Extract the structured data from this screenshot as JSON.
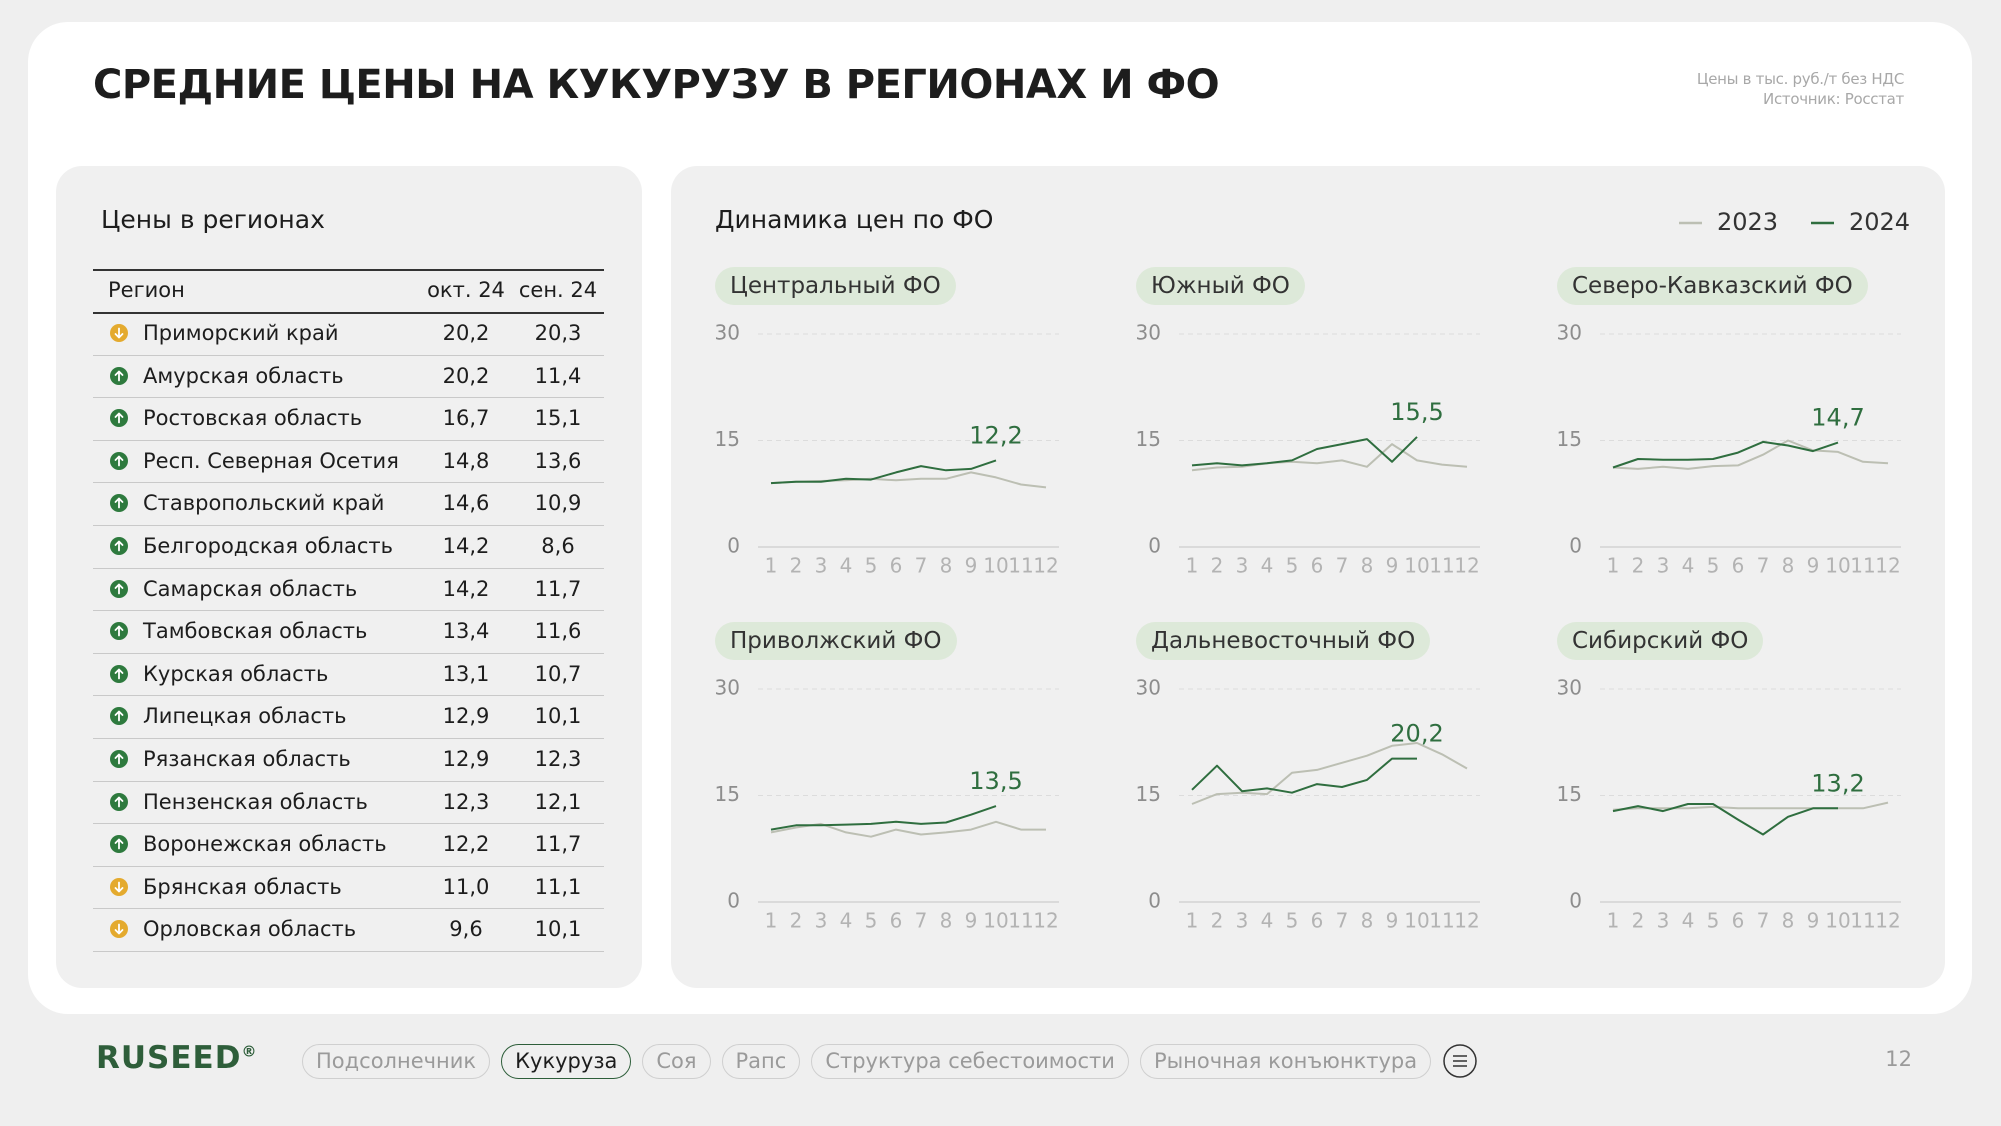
{
  "header": {
    "title": "СРЕДНИЕ ЦЕНЫ НА КУКУРУЗУ В РЕГИОНАХ И ФО",
    "note": "Цены в тыс. руб./т без НДС",
    "source": "Источник: Росстат"
  },
  "table": {
    "title": "Цены в регионах",
    "columns": [
      "Регион",
      "окт. 24",
      "сен. 24"
    ],
    "rows": [
      {
        "region": "Приморский край",
        "oct": "20,2",
        "sep": "20,3",
        "trend": "down"
      },
      {
        "region": "Амурская область",
        "oct": "20,2",
        "sep": "11,4",
        "trend": "up"
      },
      {
        "region": "Ростовская область",
        "oct": "16,7",
        "sep": "15,1",
        "trend": "up"
      },
      {
        "region": "Респ. Северная Осетия",
        "oct": "14,8",
        "sep": "13,6",
        "trend": "up"
      },
      {
        "region": "Ставропольский край",
        "oct": "14,6",
        "sep": "10,9",
        "trend": "up"
      },
      {
        "region": "Белгородская область",
        "oct": "14,2",
        "sep": "8,6",
        "trend": "up"
      },
      {
        "region": "Самарская область",
        "oct": "14,2",
        "sep": "11,7",
        "trend": "up"
      },
      {
        "region": "Тамбовская область",
        "oct": "13,4",
        "sep": "11,6",
        "trend": "up"
      },
      {
        "region": "Курская область",
        "oct": "13,1",
        "sep": "10,7",
        "trend": "up"
      },
      {
        "region": "Липецкая область",
        "oct": "12,9",
        "sep": "10,1",
        "trend": "up"
      },
      {
        "region": "Рязанская область",
        "oct": "12,9",
        "sep": "12,3",
        "trend": "up"
      },
      {
        "region": "Пензенская область",
        "oct": "12,3",
        "sep": "12,1",
        "trend": "up"
      },
      {
        "region": "Воронежская область",
        "oct": "12,2",
        "sep": "11,7",
        "trend": "up"
      },
      {
        "region": "Брянская область",
        "oct": "11,0",
        "sep": "11,1",
        "trend": "down"
      },
      {
        "region": "Орловская область",
        "oct": "9,6",
        "sep": "10,1",
        "trend": "down"
      }
    ]
  },
  "charts_title": "Динамика цен по ФО",
  "chart_data": [
    {
      "type": "line",
      "title": "Центральный ФО",
      "categories": [
        "1",
        "2",
        "3",
        "4",
        "5",
        "6",
        "7",
        "8",
        "9",
        "10",
        "11",
        "12"
      ],
      "ylim": [
        0,
        30
      ],
      "yticks": [
        0,
        15,
        30
      ],
      "grid": true,
      "series": [
        {
          "name": "2023",
          "color": "#bcbfb3",
          "values": [
            9.0,
            9.2,
            9.3,
            9.4,
            9.6,
            9.4,
            9.6,
            9.6,
            10.5,
            9.8,
            8.8,
            8.4
          ]
        },
        {
          "name": "2024",
          "color": "#2f6e3f",
          "values": [
            9.0,
            9.2,
            9.2,
            9.6,
            9.5,
            10.5,
            11.4,
            10.8,
            11.0,
            12.2,
            null,
            null
          ],
          "value_labels": [
            null,
            null,
            null,
            null,
            null,
            null,
            null,
            null,
            null,
            "12,2",
            null,
            null
          ]
        }
      ]
    },
    {
      "type": "line",
      "title": "Южный ФО",
      "categories": [
        "1",
        "2",
        "3",
        "4",
        "5",
        "6",
        "7",
        "8",
        "9",
        "10",
        "11",
        "12"
      ],
      "ylim": [
        0,
        30
      ],
      "yticks": [
        0,
        15,
        30
      ],
      "grid": true,
      "series": [
        {
          "name": "2023",
          "color": "#bcbfb3",
          "values": [
            10.8,
            11.2,
            11.3,
            11.8,
            12.0,
            11.8,
            12.2,
            11.3,
            14.5,
            12.2,
            11.6,
            11.3
          ]
        },
        {
          "name": "2024",
          "color": "#2f6e3f",
          "values": [
            11.5,
            11.8,
            11.5,
            11.8,
            12.2,
            13.8,
            14.5,
            15.2,
            12.0,
            15.5,
            null,
            null
          ],
          "value_labels": [
            null,
            null,
            null,
            null,
            null,
            null,
            null,
            null,
            null,
            "15,5",
            null,
            null
          ]
        }
      ]
    },
    {
      "type": "line",
      "title": "Северо-Кавказский ФО",
      "categories": [
        "1",
        "2",
        "3",
        "4",
        "5",
        "6",
        "7",
        "8",
        "9",
        "10",
        "11",
        "12"
      ],
      "ylim": [
        0,
        30
      ],
      "yticks": [
        0,
        15,
        30
      ],
      "grid": true,
      "series": [
        {
          "name": "2023",
          "color": "#bcbfb3",
          "values": [
            11.2,
            11.0,
            11.3,
            11.0,
            11.4,
            11.5,
            13.0,
            15.0,
            13.6,
            13.4,
            12.0,
            11.8
          ]
        },
        {
          "name": "2024",
          "color": "#2f6e3f",
          "values": [
            11.2,
            12.4,
            12.3,
            12.3,
            12.4,
            13.3,
            14.8,
            14.3,
            13.5,
            14.7,
            null,
            null
          ],
          "value_labels": [
            null,
            null,
            null,
            null,
            null,
            null,
            null,
            null,
            null,
            "14,7",
            null,
            null
          ]
        }
      ]
    },
    {
      "type": "line",
      "title": "Приволжский ФО",
      "categories": [
        "1",
        "2",
        "3",
        "4",
        "5",
        "6",
        "7",
        "8",
        "9",
        "10",
        "11",
        "12"
      ],
      "ylim": [
        0,
        30
      ],
      "yticks": [
        0,
        15,
        30
      ],
      "grid": true,
      "series": [
        {
          "name": "2023",
          "color": "#bcbfb3",
          "values": [
            9.8,
            10.5,
            11.0,
            9.8,
            9.2,
            10.2,
            9.5,
            9.8,
            10.2,
            11.3,
            10.2,
            10.2
          ]
        },
        {
          "name": "2024",
          "color": "#2f6e3f",
          "values": [
            10.2,
            10.8,
            10.8,
            10.9,
            11.0,
            11.3,
            11.0,
            11.2,
            12.3,
            13.5,
            null,
            null
          ],
          "value_labels": [
            null,
            null,
            null,
            null,
            null,
            null,
            null,
            null,
            null,
            "13,5",
            null,
            null
          ]
        }
      ]
    },
    {
      "type": "line",
      "title": "Дальневосточный ФО",
      "categories": [
        "1",
        "2",
        "3",
        "4",
        "5",
        "6",
        "7",
        "8",
        "9",
        "10",
        "11",
        "12"
      ],
      "ylim": [
        0,
        30
      ],
      "yticks": [
        0,
        15,
        30
      ],
      "grid": true,
      "series": [
        {
          "name": "2023",
          "color": "#bcbfb3",
          "values": [
            13.8,
            15.2,
            15.4,
            15.2,
            18.2,
            18.6,
            19.6,
            20.6,
            22.0,
            22.4,
            20.8,
            18.8
          ]
        },
        {
          "name": "2024",
          "color": "#2f6e3f",
          "values": [
            15.8,
            19.2,
            15.6,
            16.0,
            15.4,
            16.6,
            16.2,
            17.2,
            20.2,
            20.2,
            null,
            null
          ],
          "value_labels": [
            null,
            null,
            null,
            null,
            null,
            null,
            null,
            null,
            null,
            "20,2",
            null,
            null
          ]
        }
      ]
    },
    {
      "type": "line",
      "title": "Сибирский ФО",
      "categories": [
        "1",
        "2",
        "3",
        "4",
        "5",
        "6",
        "7",
        "8",
        "9",
        "10",
        "11",
        "12"
      ],
      "ylim": [
        0,
        30
      ],
      "yticks": [
        0,
        15,
        30
      ],
      "grid": true,
      "series": [
        {
          "name": "2023",
          "color": "#bcbfb3",
          "values": [
            13.0,
            13.2,
            13.2,
            13.2,
            13.4,
            13.2,
            13.2,
            13.2,
            13.2,
            13.2,
            13.2,
            14.0
          ]
        },
        {
          "name": "2024",
          "color": "#2f6e3f",
          "values": [
            12.8,
            13.5,
            12.8,
            13.8,
            13.8,
            11.6,
            9.5,
            12.0,
            13.2,
            13.2,
            null,
            null
          ],
          "value_labels": [
            null,
            null,
            null,
            null,
            null,
            null,
            null,
            null,
            null,
            "13,2",
            null,
            null
          ]
        }
      ]
    }
  ],
  "footer": {
    "logo": "RUSEED",
    "logo_mark": "®",
    "nav": [
      "Подсолнечник",
      "Кукуруза",
      "Соя",
      "Рапс",
      "Структура себестоимости",
      "Рыночная конъюнктура"
    ],
    "active": 1,
    "page": "12"
  }
}
